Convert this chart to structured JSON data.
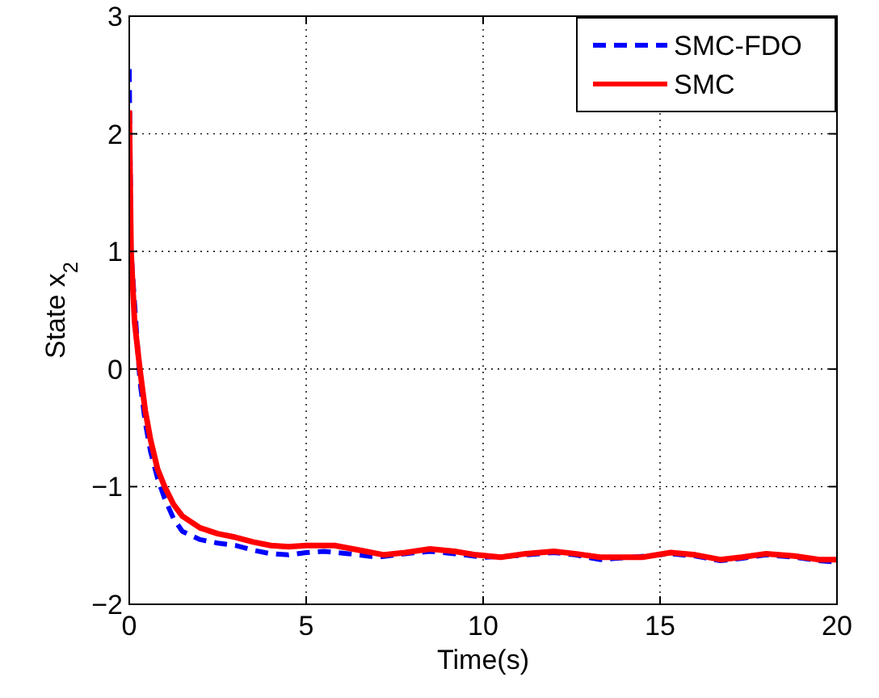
{
  "chart_data": {
    "type": "line",
    "xlabel": "Time(s)",
    "ylabel": "State x$_{2}$",
    "xlim": [
      0,
      20
    ],
    "ylim": [
      -2,
      3
    ],
    "xticks": [
      0,
      5,
      10,
      15,
      20
    ],
    "yticks": [
      -2,
      -1,
      0,
      1,
      2,
      3
    ],
    "grid": true,
    "legend": "top right",
    "series": [
      {
        "name": "SMC-FDO",
        "color": "#0000ff",
        "line_style": "dashed",
        "x": [
          0,
          0.05,
          0.3,
          0.45,
          0.6,
          0.8,
          1,
          1.25,
          1.5,
          2,
          2.5,
          3,
          3.5,
          4,
          4.5,
          5,
          5.5,
          6.2,
          7,
          7.8,
          8.5,
          9.2,
          10,
          10.8,
          12,
          12.6,
          13.3,
          14.2,
          15.3,
          16,
          16.7,
          17.3,
          18,
          18.8,
          19.5,
          20
        ],
        "values": [
          2.55,
          1.0,
          -0.1,
          -0.45,
          -0.7,
          -0.93,
          -1.1,
          -1.27,
          -1.38,
          -1.45,
          -1.48,
          -1.5,
          -1.54,
          -1.57,
          -1.58,
          -1.56,
          -1.55,
          -1.57,
          -1.6,
          -1.57,
          -1.55,
          -1.57,
          -1.6,
          -1.59,
          -1.56,
          -1.58,
          -1.62,
          -1.6,
          -1.57,
          -1.59,
          -1.63,
          -1.61,
          -1.58,
          -1.6,
          -1.63,
          -1.64
        ]
      },
      {
        "name": "SMC",
        "color": "#ff0000",
        "line_style": "solid",
        "x": [
          0,
          0.05,
          0.15,
          0.3,
          0.45,
          0.6,
          0.8,
          1,
          1.25,
          1.5,
          2,
          2.5,
          3,
          3.5,
          4,
          4.5,
          5,
          5.8,
          6.5,
          7.2,
          7.8,
          8.5,
          9.2,
          9.8,
          10.5,
          11.2,
          12,
          12.6,
          13.3,
          14.5,
          15.3,
          16,
          16.7,
          17.3,
          18,
          18.8,
          19.5,
          20
        ],
        "values": [
          2.2,
          1.0,
          0.4,
          0.0,
          -0.35,
          -0.6,
          -0.85,
          -1.0,
          -1.15,
          -1.25,
          -1.35,
          -1.4,
          -1.43,
          -1.47,
          -1.5,
          -1.51,
          -1.5,
          -1.5,
          -1.54,
          -1.58,
          -1.56,
          -1.53,
          -1.55,
          -1.58,
          -1.6,
          -1.57,
          -1.55,
          -1.57,
          -1.6,
          -1.6,
          -1.56,
          -1.58,
          -1.62,
          -1.6,
          -1.57,
          -1.59,
          -1.62,
          -1.62
        ]
      }
    ]
  }
}
